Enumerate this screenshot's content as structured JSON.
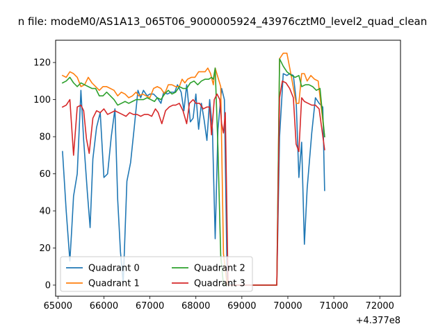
{
  "chart_data": {
    "type": "line",
    "title": "n file: modeM0/AS1A13_065T06_9000005924_43976cztM0_level2_quad_clean",
    "xlabel": "",
    "ylabel": "",
    "x_offset_label": "+4.377e8",
    "xlim": [
      64950,
      72450
    ],
    "ylim": [
      -6,
      132
    ],
    "x_ticks": [
      65000,
      66000,
      67000,
      68000,
      69000,
      70000,
      71000,
      72000
    ],
    "x_tick_labels": [
      "65000",
      "66000",
      "67000",
      "68000",
      "69000",
      "70000",
      "71000",
      "72000"
    ],
    "y_ticks": [
      0,
      20,
      40,
      60,
      80,
      100,
      120
    ],
    "y_tick_labels": [
      "0",
      "20",
      "40",
      "60",
      "80",
      "100",
      "120"
    ],
    "grid": false,
    "legend": {
      "placement": "lower-left",
      "columns": 2
    },
    "series": [
      {
        "name": "Quadrant 0",
        "color": "#1f77b4",
        "points": [
          [
            65100,
            72
          ],
          [
            65180,
            40
          ],
          [
            65260,
            13
          ],
          [
            65300,
            30
          ],
          [
            65340,
            48
          ],
          [
            65420,
            60
          ],
          [
            65500,
            105
          ],
          [
            65560,
            78
          ],
          [
            65640,
            50
          ],
          [
            65700,
            31
          ],
          [
            65760,
            68
          ],
          [
            65840,
            85
          ],
          [
            65920,
            93
          ],
          [
            66000,
            58
          ],
          [
            66080,
            60
          ],
          [
            66160,
            80
          ],
          [
            66240,
            95
          ],
          [
            66300,
            46
          ],
          [
            66360,
            18
          ],
          [
            66420,
            1
          ],
          [
            66500,
            56
          ],
          [
            66580,
            66
          ],
          [
            66660,
            85
          ],
          [
            66740,
            105
          ],
          [
            66800,
            101
          ],
          [
            66860,
            105
          ],
          [
            66940,
            102
          ],
          [
            67000,
            103
          ],
          [
            67080,
            103
          ],
          [
            67160,
            101
          ],
          [
            67240,
            98
          ],
          [
            67300,
            104
          ],
          [
            67380,
            103
          ],
          [
            67460,
            104
          ],
          [
            67540,
            104
          ],
          [
            67600,
            108
          ],
          [
            67680,
            104
          ],
          [
            67740,
            94
          ],
          [
            67800,
            108
          ],
          [
            67880,
            88
          ],
          [
            67940,
            90
          ],
          [
            68000,
            103
          ],
          [
            68060,
            84
          ],
          [
            68120,
            98
          ],
          [
            68180,
            89
          ],
          [
            68240,
            78
          ],
          [
            68300,
            100
          ],
          [
            68360,
            84
          ],
          [
            68420,
            25
          ],
          [
            68480,
            84
          ],
          [
            68560,
            106
          ],
          [
            68620,
            100
          ],
          [
            68680,
            3
          ],
          [
            68740,
            1
          ],
          [
            68820,
            0
          ],
          [
            69000,
            0
          ],
          [
            69200,
            0
          ],
          [
            69400,
            0
          ],
          [
            69600,
            0
          ],
          [
            69760,
            0
          ],
          [
            69820,
            80
          ],
          [
            69900,
            114
          ],
          [
            69980,
            113
          ],
          [
            70040,
            114
          ],
          [
            70120,
            113
          ],
          [
            70180,
            100
          ],
          [
            70240,
            58
          ],
          [
            70300,
            77
          ],
          [
            70360,
            22
          ],
          [
            70420,
            52
          ],
          [
            70520,
            82
          ],
          [
            70600,
            101
          ],
          [
            70680,
            98
          ],
          [
            70760,
            96
          ],
          [
            70800,
            51
          ]
        ]
      },
      {
        "name": "Quadrant 1",
        "color": "#ff7f0e",
        "points": [
          [
            65100,
            113
          ],
          [
            65180,
            112
          ],
          [
            65260,
            115
          ],
          [
            65340,
            114
          ],
          [
            65420,
            112
          ],
          [
            65500,
            107
          ],
          [
            65580,
            108
          ],
          [
            65660,
            112
          ],
          [
            65740,
            109
          ],
          [
            65820,
            107
          ],
          [
            65900,
            105
          ],
          [
            65980,
            107
          ],
          [
            66060,
            107
          ],
          [
            66140,
            106
          ],
          [
            66220,
            105
          ],
          [
            66300,
            102
          ],
          [
            66380,
            104
          ],
          [
            66460,
            103
          ],
          [
            66540,
            101
          ],
          [
            66620,
            102
          ],
          [
            66700,
            104
          ],
          [
            66760,
            102
          ],
          [
            66840,
            103
          ],
          [
            66920,
            102
          ],
          [
            67000,
            101
          ],
          [
            67080,
            106
          ],
          [
            67160,
            107
          ],
          [
            67240,
            106
          ],
          [
            67320,
            103
          ],
          [
            67400,
            108
          ],
          [
            67480,
            108
          ],
          [
            67560,
            107
          ],
          [
            67640,
            107
          ],
          [
            67700,
            111
          ],
          [
            67760,
            109
          ],
          [
            67820,
            111
          ],
          [
            67900,
            112
          ],
          [
            67980,
            112
          ],
          [
            68060,
            115
          ],
          [
            68140,
            115
          ],
          [
            68200,
            115
          ],
          [
            68260,
            117
          ],
          [
            68320,
            114
          ],
          [
            68380,
            108
          ],
          [
            68420,
            117
          ],
          [
            68480,
            112
          ],
          [
            68540,
            107
          ],
          [
            68600,
            17
          ],
          [
            68680,
            0
          ],
          [
            68800,
            0
          ],
          [
            69000,
            0
          ],
          [
            69200,
            0
          ],
          [
            69400,
            0
          ],
          [
            69600,
            0
          ],
          [
            69760,
            0
          ],
          [
            69820,
            122
          ],
          [
            69900,
            125
          ],
          [
            69980,
            125
          ],
          [
            70080,
            112
          ],
          [
            70180,
            98
          ],
          [
            70240,
            98
          ],
          [
            70300,
            114
          ],
          [
            70360,
            114
          ],
          [
            70420,
            110
          ],
          [
            70500,
            113
          ],
          [
            70580,
            111
          ],
          [
            70660,
            110
          ],
          [
            70800,
            80
          ]
        ]
      },
      {
        "name": "Quadrant 2",
        "color": "#2ca02c",
        "points": [
          [
            65100,
            109
          ],
          [
            65180,
            110
          ],
          [
            65260,
            112
          ],
          [
            65340,
            109
          ],
          [
            65420,
            107
          ],
          [
            65500,
            109
          ],
          [
            65580,
            108
          ],
          [
            65660,
            107
          ],
          [
            65740,
            106
          ],
          [
            65820,
            106
          ],
          [
            65900,
            102
          ],
          [
            65980,
            102
          ],
          [
            66060,
            104
          ],
          [
            66140,
            102
          ],
          [
            66220,
            100
          ],
          [
            66300,
            97
          ],
          [
            66380,
            98
          ],
          [
            66460,
            99
          ],
          [
            66540,
            98
          ],
          [
            66620,
            99
          ],
          [
            66700,
            100
          ],
          [
            66780,
            100
          ],
          [
            66860,
            100
          ],
          [
            66940,
            101
          ],
          [
            67020,
            100
          ],
          [
            67100,
            99
          ],
          [
            67160,
            101
          ],
          [
            67240,
            100
          ],
          [
            67320,
            103
          ],
          [
            67400,
            105
          ],
          [
            67480,
            103
          ],
          [
            67560,
            104
          ],
          [
            67640,
            107
          ],
          [
            67720,
            106
          ],
          [
            67800,
            106
          ],
          [
            67880,
            109
          ],
          [
            67960,
            110
          ],
          [
            68040,
            108
          ],
          [
            68120,
            110
          ],
          [
            68200,
            111
          ],
          [
            68280,
            111
          ],
          [
            68340,
            112
          ],
          [
            68380,
            111
          ],
          [
            68420,
            117
          ],
          [
            68480,
            74
          ],
          [
            68540,
            16
          ],
          [
            68600,
            0
          ],
          [
            68800,
            0
          ],
          [
            69000,
            0
          ],
          [
            69200,
            0
          ],
          [
            69400,
            0
          ],
          [
            69600,
            0
          ],
          [
            69760,
            0
          ],
          [
            69820,
            122
          ],
          [
            69900,
            118
          ],
          [
            69980,
            115
          ],
          [
            70080,
            113
          ],
          [
            70160,
            112
          ],
          [
            70240,
            113
          ],
          [
            70300,
            107
          ],
          [
            70380,
            108
          ],
          [
            70460,
            108
          ],
          [
            70540,
            107
          ],
          [
            70620,
            105
          ],
          [
            70700,
            106
          ],
          [
            70800,
            80
          ]
        ]
      },
      {
        "name": "Quadrant 3",
        "color": "#d62728",
        "points": [
          [
            65100,
            96
          ],
          [
            65180,
            97
          ],
          [
            65260,
            100
          ],
          [
            65340,
            70
          ],
          [
            65420,
            96
          ],
          [
            65500,
            97
          ],
          [
            65560,
            94
          ],
          [
            65620,
            79
          ],
          [
            65680,
            71
          ],
          [
            65760,
            90
          ],
          [
            65840,
            94
          ],
          [
            65920,
            93
          ],
          [
            66000,
            95
          ],
          [
            66080,
            92
          ],
          [
            66160,
            93
          ],
          [
            66240,
            94
          ],
          [
            66320,
            93
          ],
          [
            66400,
            92
          ],
          [
            66480,
            91
          ],
          [
            66560,
            93
          ],
          [
            66640,
            92
          ],
          [
            66720,
            92
          ],
          [
            66800,
            91
          ],
          [
            66880,
            92
          ],
          [
            66960,
            92
          ],
          [
            67040,
            91
          ],
          [
            67120,
            95
          ],
          [
            67180,
            93
          ],
          [
            67260,
            87
          ],
          [
            67340,
            94
          ],
          [
            67420,
            96
          ],
          [
            67500,
            97
          ],
          [
            67560,
            97
          ],
          [
            67640,
            98
          ],
          [
            67720,
            94
          ],
          [
            67800,
            87
          ],
          [
            67860,
            98
          ],
          [
            67940,
            100
          ],
          [
            68000,
            98
          ],
          [
            68080,
            98
          ],
          [
            68160,
            95
          ],
          [
            68240,
            96
          ],
          [
            68300,
            96
          ],
          [
            68340,
            81
          ],
          [
            68400,
            100
          ],
          [
            68460,
            103
          ],
          [
            68520,
            100
          ],
          [
            68560,
            87
          ],
          [
            68600,
            82
          ],
          [
            68640,
            93
          ],
          [
            68700,
            0
          ],
          [
            68800,
            0
          ],
          [
            69000,
            0
          ],
          [
            69200,
            0
          ],
          [
            69400,
            0
          ],
          [
            69600,
            0
          ],
          [
            69760,
            0
          ],
          [
            69820,
            101
          ],
          [
            69880,
            110
          ],
          [
            69960,
            109
          ],
          [
            70040,
            106
          ],
          [
            70120,
            101
          ],
          [
            70180,
            76
          ],
          [
            70240,
            72
          ],
          [
            70300,
            101
          ],
          [
            70360,
            99
          ],
          [
            70440,
            98
          ],
          [
            70520,
            97
          ],
          [
            70600,
            97
          ],
          [
            70680,
            95
          ],
          [
            70800,
            73
          ]
        ]
      }
    ]
  }
}
